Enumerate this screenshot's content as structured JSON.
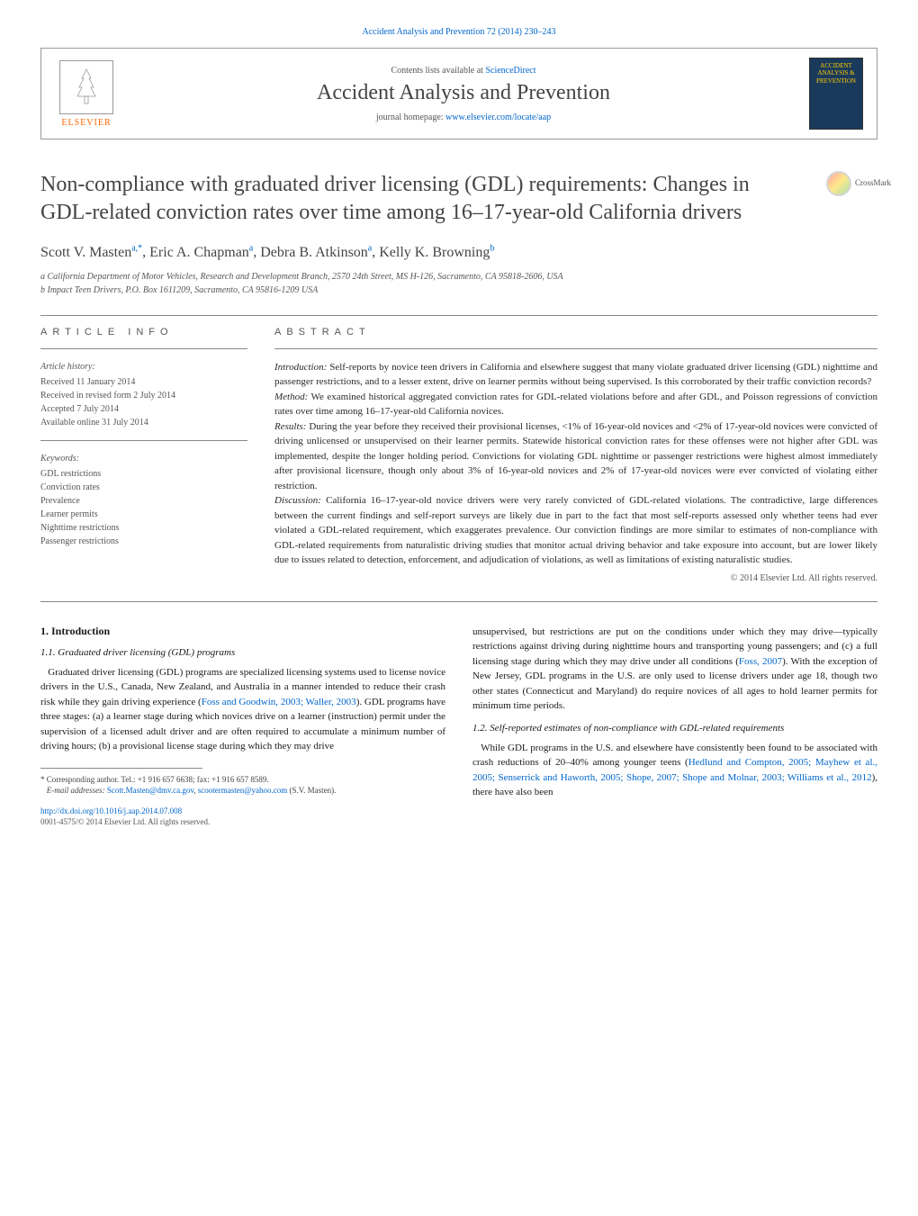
{
  "top_link": "Accident Analysis and Prevention 72 (2014) 230–243",
  "header": {
    "contents_text": "Contents lists available at ",
    "contents_link": "ScienceDirect",
    "journal_name": "Accident Analysis and Prevention",
    "homepage_label": "journal homepage: ",
    "homepage_url": "www.elsevier.com/locate/aap",
    "elsevier_label": "ELSEVIER",
    "cover_text": "ACCIDENT ANALYSIS & PREVENTION"
  },
  "crossmark_label": "CrossMark",
  "title": "Non-compliance with graduated driver licensing (GDL) requirements: Changes in GDL-related conviction rates over time among 16–17-year-old California drivers",
  "authors_html": "Scott V. Masten",
  "authors": [
    {
      "name": "Scott V. Masten",
      "sup": "a,*"
    },
    {
      "name": "Eric A. Chapman",
      "sup": "a"
    },
    {
      "name": "Debra B. Atkinson",
      "sup": "a"
    },
    {
      "name": "Kelly K. Browning",
      "sup": "b"
    }
  ],
  "affiliations": [
    "a California Department of Motor Vehicles, Research and Development Branch, 2570 24th Street, MS H-126, Sacramento, CA 95818-2606, USA",
    "b Impact Teen Drivers, P.O. Box 1611209, Sacramento, CA 95816-1209 USA"
  ],
  "info": {
    "header": "article info",
    "history_title": "Article history:",
    "history": [
      "Received 11 January 2014",
      "Received in revised form 2 July 2014",
      "Accepted 7 July 2014",
      "Available online 31 July 2014"
    ],
    "keywords_title": "Keywords:",
    "keywords": [
      "GDL restrictions",
      "Conviction rates",
      "Prevalence",
      "Learner permits",
      "Nighttime restrictions",
      "Passenger restrictions"
    ]
  },
  "abstract": {
    "header": "abstract",
    "sections": [
      {
        "label": "Introduction:",
        "text": " Self-reports by novice teen drivers in California and elsewhere suggest that many violate graduated driver licensing (GDL) nighttime and passenger restrictions, and to a lesser extent, drive on learner permits without being supervised. Is this corroborated by their traffic conviction records?"
      },
      {
        "label": "Method:",
        "text": " We examined historical aggregated conviction rates for GDL-related violations before and after GDL, and Poisson regressions of conviction rates over time among 16–17-year-old California novices."
      },
      {
        "label": "Results:",
        "text": " During the year before they received their provisional licenses, <1% of 16-year-old novices and <2% of 17-year-old novices were convicted of driving unlicensed or unsupervised on their learner permits. Statewide historical conviction rates for these offenses were not higher after GDL was implemented, despite the longer holding period. Convictions for violating GDL nighttime or passenger restrictions were highest almost immediately after provisional licensure, though only about 3% of 16-year-old novices and 2% of 17-year-old novices were ever convicted of violating either restriction."
      },
      {
        "label": "Discussion:",
        "text": " California 16–17-year-old novice drivers were very rarely convicted of GDL-related violations. The contradictive, large differences between the current findings and self-report surveys are likely due in part to the fact that most self-reports assessed only whether teens had ever violated a GDL-related requirement, which exaggerates prevalence. Our conviction findings are more similar to estimates of non-compliance with GDL-related requirements from naturalistic driving studies that monitor actual driving behavior and take exposure into account, but are lower likely due to issues related to detection, enforcement, and adjudication of violations, as well as limitations of existing naturalistic studies."
      }
    ],
    "copyright": "© 2014 Elsevier Ltd. All rights reserved."
  },
  "body": {
    "section1_heading": "1. Introduction",
    "section11_heading": "1.1. Graduated driver licensing (GDL) programs",
    "para11_pre": "Graduated driver licensing (GDL) programs are specialized licensing systems used to license novice drivers in the U.S., Canada, New Zealand, and Australia in a manner intended to reduce their crash risk while they gain driving experience (",
    "para11_cite1": "Foss and Goodwin, 2003; Waller, 2003",
    "para11_post": "). GDL programs have three stages: (a) a learner stage during which novices drive on a learner (instruction) permit under the supervision of a licensed adult driver and are often required to accumulate a minimum number of driving hours; (b) a provisional license stage during which they may drive",
    "para11b_pre": "unsupervised, but restrictions are put on the conditions under which they may drive—typically restrictions against driving during nighttime hours and transporting young passengers; and (c) a full licensing stage during which they may drive under all conditions (",
    "para11b_cite1": "Foss, 2007",
    "para11b_post": "). With the exception of New Jersey, GDL programs in the U.S. are only used to license drivers under age 18, though two other states (Connecticut and Maryland) do require novices of all ages to hold learner permits for minimum time periods.",
    "section12_heading": "1.2. Self-reported estimates of non-compliance with GDL-related requirements",
    "para12_pre": "While GDL programs in the U.S. and elsewhere have consistently been found to be associated with crash reductions of 20–40% among younger teens (",
    "para12_cite1": "Hedlund and Compton, 2005; Mayhew et al., 2005; Senserrick and Haworth, 2005; Shope, 2007; Shope and Molnar, 2003; Williams et al., 2012",
    "para12_post": "), there have also been"
  },
  "footnote": {
    "corr": "* Corresponding author. Tel.: +1 916 657 6638; fax: +1 916 657 8589.",
    "email_label": "E-mail addresses: ",
    "email1": "Scott.Masten@dmv.ca.gov",
    "email_sep": ", ",
    "email2": "scootermasten@yahoo.com",
    "email_tail": " (S.V. Masten)."
  },
  "bottom": {
    "doi": "http://dx.doi.org/10.1016/j.aap.2014.07.008",
    "issn_line": "0001-4575/© 2014 Elsevier Ltd. All rights reserved."
  },
  "colors": {
    "link": "#0066cc",
    "elsevier_orange": "#ff6600",
    "text_body": "#2a2a2a",
    "text_muted": "#555555"
  }
}
